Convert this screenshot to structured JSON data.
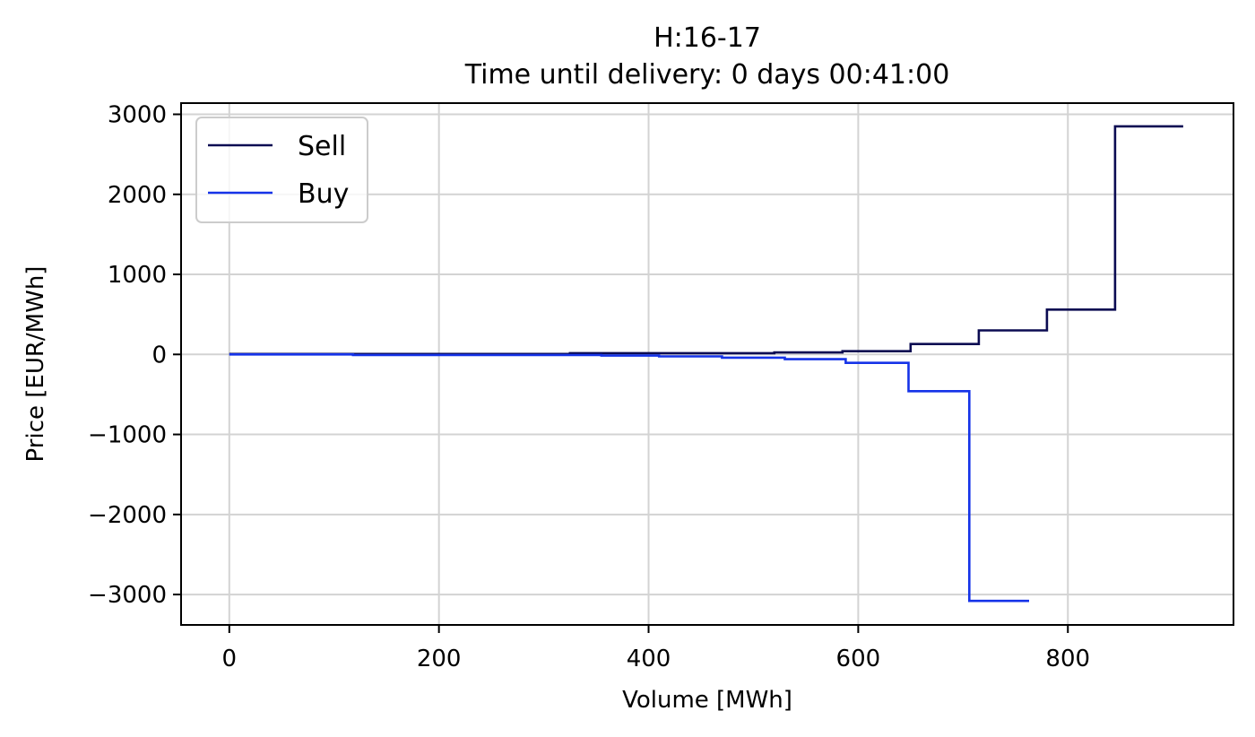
{
  "chart_data": {
    "type": "line",
    "title": "H:16-17",
    "subtitle": "Time until delivery: 0 days 00:41:00",
    "xlabel": "Volume [MWh]",
    "ylabel": "Price [EUR/MWh]",
    "xlim": [
      -46,
      958
    ],
    "ylim": [
      -3380,
      3140
    ],
    "xticks": [
      0,
      200,
      400,
      600,
      800
    ],
    "yticks": [
      -3000,
      -2000,
      -1000,
      0,
      1000,
      2000,
      3000
    ],
    "xtick_labels": [
      "0",
      "200",
      "400",
      "600",
      "800"
    ],
    "ytick_labels": [
      "−3000",
      "−2000",
      "−1000",
      "0",
      "1000",
      "2000",
      "3000"
    ],
    "grid": true,
    "legend": "upper-left",
    "series": [
      {
        "name": "Sell",
        "color": "#0b0b52",
        "step": "post",
        "x": [
          0,
          325,
          520,
          585,
          650,
          715,
          780,
          845,
          910
        ],
        "y": [
          5,
          15,
          25,
          40,
          130,
          300,
          560,
          2850,
          2850
        ]
      },
      {
        "name": "Buy",
        "color": "#1533e8",
        "step": "post",
        "x": [
          0,
          118,
          355,
          410,
          470,
          530,
          588,
          648,
          706,
          763
        ],
        "y": [
          0,
          -8,
          -15,
          -25,
          -40,
          -60,
          -105,
          -460,
          -3080,
          -3080
        ]
      }
    ]
  }
}
